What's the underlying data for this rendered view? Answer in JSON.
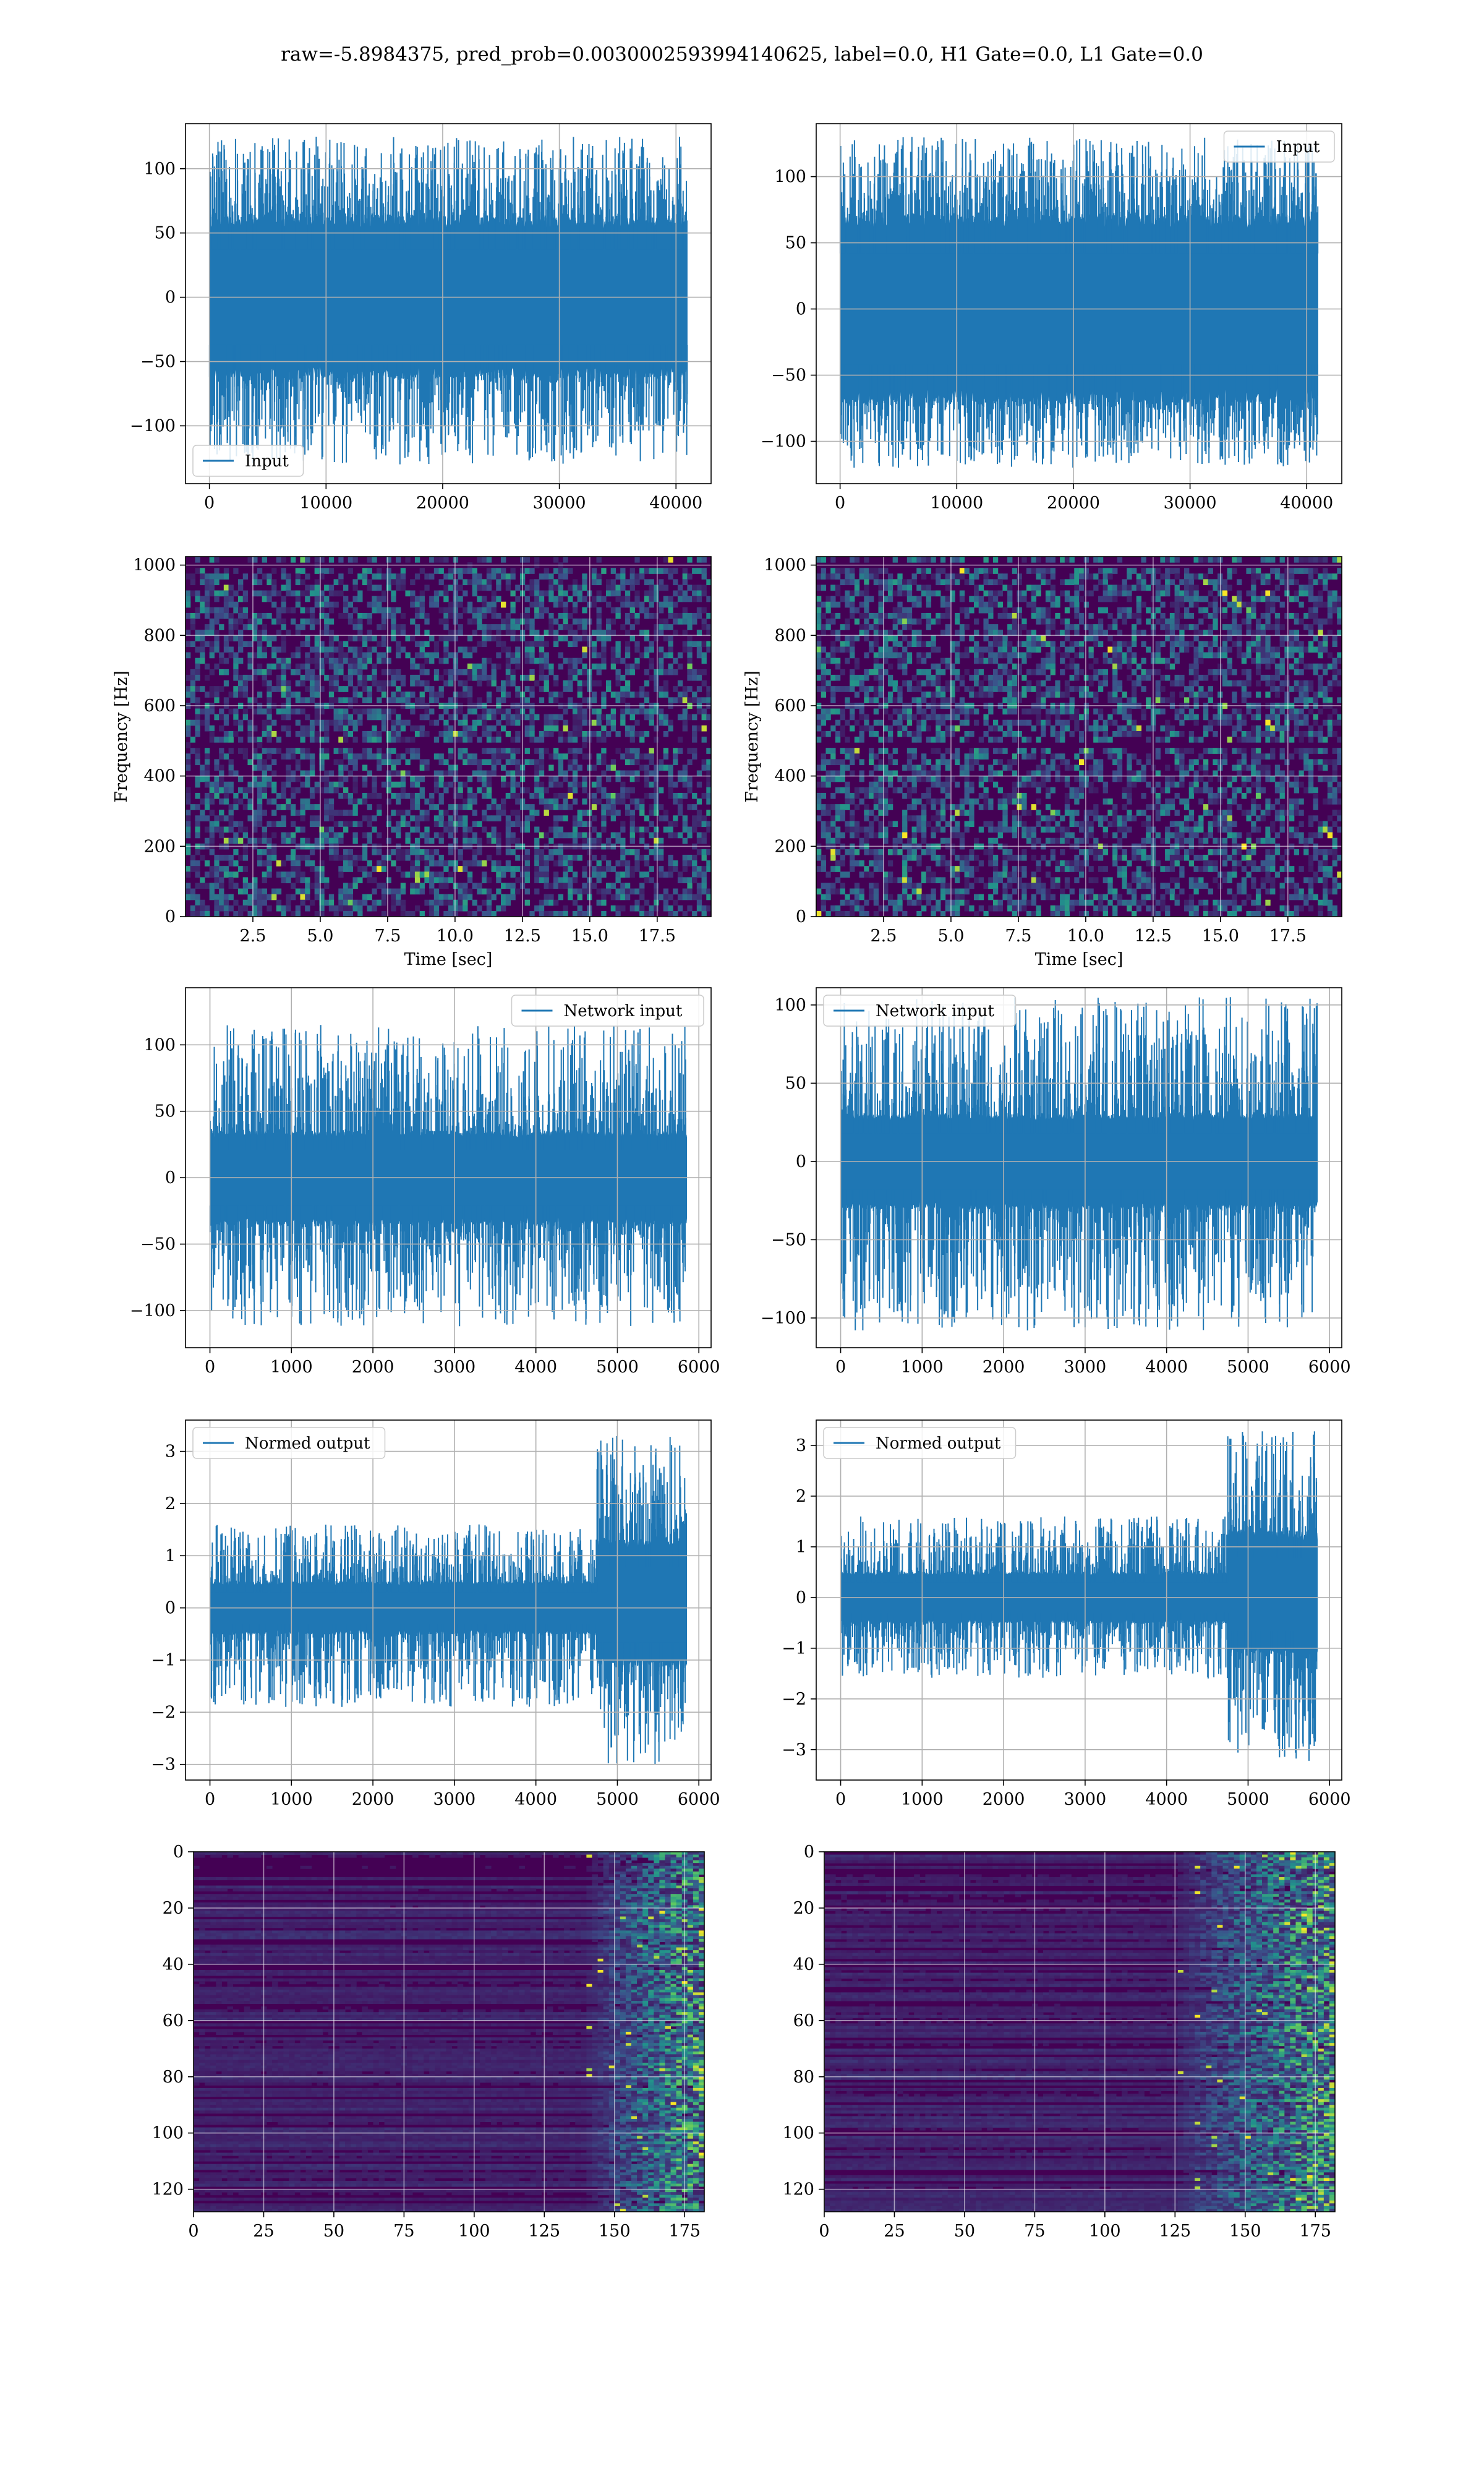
{
  "figure": {
    "title": "raw=-5.8984375, pred_prob=0.0030002593994140625, label=0.0, H1 Gate=0.0, L1 Gate=0.0",
    "colors": {
      "line": "#1f77b4",
      "grid": "#b0b0b0",
      "viridis_dark": "#440154",
      "viridis_mid": "#21918c",
      "viridis_bright": "#fde725"
    }
  },
  "chart_data": [
    {
      "id": "input-h1",
      "type": "line",
      "series": [
        {
          "name": "Input",
          "envelope": {
            "x_start": 0,
            "x_end": 40960,
            "core_min": -62,
            "core_max": 62,
            "peak_min": -130,
            "peak_max": 125
          }
        }
      ],
      "xlim": [
        -2048,
        43008
      ],
      "ylim": [
        -145,
        135
      ],
      "xticks": [
        0,
        10000,
        20000,
        30000,
        40000
      ],
      "yticks": [
        -100,
        -50,
        0,
        50,
        100
      ],
      "legend": "lower-left",
      "grid": true,
      "xlabel": "",
      "ylabel": ""
    },
    {
      "id": "input-l1",
      "type": "line",
      "series": [
        {
          "name": "Input",
          "envelope": {
            "x_start": 0,
            "x_end": 40960,
            "core_min": -70,
            "core_max": 70,
            "peak_min": -120,
            "peak_max": 130
          }
        }
      ],
      "xlim": [
        -2048,
        43008
      ],
      "ylim": [
        -132,
        140
      ],
      "xticks": [
        0,
        10000,
        20000,
        30000,
        40000
      ],
      "yticks": [
        -100,
        -50,
        0,
        50,
        100
      ],
      "legend": "upper-right",
      "grid": true,
      "xlabel": "",
      "ylabel": ""
    },
    {
      "id": "spec-h1",
      "type": "heatmap",
      "xlim": [
        0,
        19.5
      ],
      "ylim": [
        0,
        1024
      ],
      "xticks": [
        2.5,
        5.0,
        7.5,
        10.0,
        12.5,
        15.0,
        17.5
      ],
      "xtick_labels": [
        "2.5",
        "5.0",
        "7.5",
        "10.0",
        "12.5",
        "15.0",
        "17.5"
      ],
      "yticks": [
        0,
        200,
        400,
        600,
        800,
        1000
      ],
      "xlabel": "Time [sec]",
      "ylabel": "Frequency [Hz]",
      "dark_bands_hz": [
        490,
        1000
      ],
      "grid": true
    },
    {
      "id": "spec-l1",
      "type": "heatmap",
      "xlim": [
        0,
        19.5
      ],
      "ylim": [
        0,
        1024
      ],
      "xticks": [
        2.5,
        5.0,
        7.5,
        10.0,
        12.5,
        15.0,
        17.5
      ],
      "xtick_labels": [
        "2.5",
        "5.0",
        "7.5",
        "10.0",
        "12.5",
        "15.0",
        "17.5"
      ],
      "yticks": [
        0,
        200,
        400,
        600,
        800,
        1000
      ],
      "xlabel": "Time [sec]",
      "ylabel": "Frequency [Hz]",
      "dark_bands_hz": [
        490,
        1000
      ],
      "grid": true
    },
    {
      "id": "net-h1",
      "type": "line",
      "series": [
        {
          "name": "Network input",
          "envelope": {
            "x_start": 0,
            "x_end": 5850,
            "core_min": -35,
            "core_max": 35,
            "peak_min": -112,
            "peak_max": 115
          }
        }
      ],
      "xlim": [
        -300,
        6150
      ],
      "ylim": [
        -128,
        143
      ],
      "xticks": [
        0,
        1000,
        2000,
        3000,
        4000,
        5000,
        6000
      ],
      "yticks": [
        -100,
        -50,
        0,
        50,
        100
      ],
      "legend": "upper-right",
      "grid": true,
      "xlabel": "",
      "ylabel": ""
    },
    {
      "id": "net-l1",
      "type": "line",
      "series": [
        {
          "name": "Network input",
          "envelope": {
            "x_start": 0,
            "x_end": 5850,
            "core_min": -30,
            "core_max": 30,
            "peak_min": -108,
            "peak_max": 105
          }
        }
      ],
      "xlim": [
        -300,
        6150
      ],
      "ylim": [
        -119,
        111
      ],
      "xticks": [
        0,
        1000,
        2000,
        3000,
        4000,
        5000,
        6000
      ],
      "yticks": [
        -100,
        -50,
        0,
        50,
        100
      ],
      "legend": "upper-left",
      "grid": true,
      "xlabel": "",
      "ylabel": ""
    },
    {
      "id": "norm-h1",
      "type": "line",
      "series": [
        {
          "name": "Normed output",
          "envelope": {
            "x_start": 0,
            "x_end": 5850,
            "core_min": -0.5,
            "core_max": 0.5,
            "peak_min": -1.9,
            "peak_max": 1.6,
            "burst_x": 4750,
            "burst_core_min": -1.1,
            "burst_core_max": 1.3,
            "burst_peak_min": -3.0,
            "burst_peak_max": 3.3
          }
        }
      ],
      "xlim": [
        -300,
        6150
      ],
      "ylim": [
        -3.3,
        3.6
      ],
      "xticks": [
        0,
        1000,
        2000,
        3000,
        4000,
        5000,
        6000
      ],
      "yticks": [
        -3,
        -2,
        -1,
        0,
        1,
        2,
        3
      ],
      "legend": "upper-left",
      "grid": true,
      "xlabel": "",
      "ylabel": ""
    },
    {
      "id": "norm-l1",
      "type": "line",
      "series": [
        {
          "name": "Normed output",
          "envelope": {
            "x_start": 0,
            "x_end": 5850,
            "core_min": -0.5,
            "core_max": 0.5,
            "peak_min": -1.6,
            "peak_max": 1.6,
            "burst_x": 4750,
            "burst_core_min": -1.1,
            "burst_core_max": 1.3,
            "burst_peak_min": -3.3,
            "burst_peak_max": 3.3
          }
        }
      ],
      "xlim": [
        -300,
        6150
      ],
      "ylim": [
        -3.6,
        3.5
      ],
      "xticks": [
        0,
        1000,
        2000,
        3000,
        4000,
        5000,
        6000
      ],
      "yticks": [
        -3,
        -2,
        -1,
        0,
        1,
        2,
        3
      ],
      "legend": "upper-left",
      "grid": true,
      "xlabel": "",
      "ylabel": ""
    },
    {
      "id": "feat-h1",
      "type": "heatmap",
      "xlim": [
        0,
        182
      ],
      "ylim": [
        128,
        0
      ],
      "xticks": [
        0,
        25,
        50,
        75,
        100,
        125,
        150,
        175
      ],
      "yticks": [
        0,
        20,
        40,
        60,
        80,
        100,
        120
      ],
      "bright_from_column": 140,
      "grid": true,
      "xlabel": "",
      "ylabel": ""
    },
    {
      "id": "feat-l1",
      "type": "heatmap",
      "xlim": [
        0,
        182
      ],
      "ylim": [
        128,
        0
      ],
      "xticks": [
        0,
        25,
        50,
        75,
        100,
        125,
        150,
        175
      ],
      "yticks": [
        0,
        20,
        40,
        60,
        80,
        100,
        120
      ],
      "bright_from_column": 125,
      "grid": true,
      "xlabel": "",
      "ylabel": ""
    }
  ]
}
